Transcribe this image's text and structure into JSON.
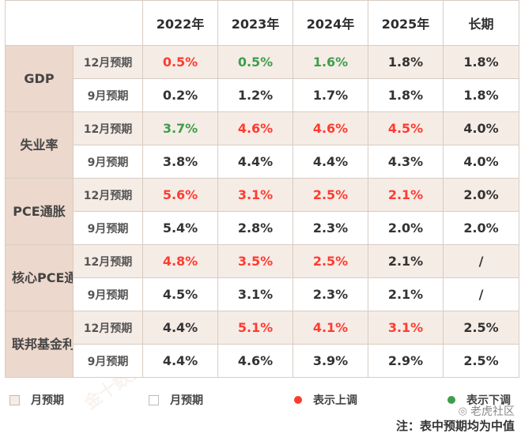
{
  "header": {
    "corner": "",
    "years": [
      "2022年",
      "2023年",
      "2024年",
      "2025年",
      "长期"
    ]
  },
  "rows": [
    {
      "metric": "GDP",
      "dec": {
        "label": "12月预期",
        "values": [
          "0.5%",
          "0.5%",
          "1.6%",
          "1.8%",
          "1.8%"
        ],
        "dirs": [
          "up",
          "down",
          "down",
          "",
          ""
        ]
      },
      "sep": {
        "label": "9月预期",
        "values": [
          "0.2%",
          "1.2%",
          "1.7%",
          "1.8%",
          "1.8%"
        ]
      }
    },
    {
      "metric": "失业率",
      "dec": {
        "label": "12月预期",
        "values": [
          "3.7%",
          "4.6%",
          "4.6%",
          "4.5%",
          "4.0%"
        ],
        "dirs": [
          "down",
          "up",
          "up",
          "up",
          ""
        ]
      },
      "sep": {
        "label": "9月预期",
        "values": [
          "3.8%",
          "4.4%",
          "4.4%",
          "4.3%",
          "4.0%"
        ]
      }
    },
    {
      "metric": "PCE通胀",
      "dec": {
        "label": "12月预期",
        "values": [
          "5.6%",
          "3.1%",
          "2.5%",
          "2.1%",
          "2.0%"
        ],
        "dirs": [
          "up",
          "up",
          "up",
          "up",
          ""
        ]
      },
      "sep": {
        "label": "9月预期",
        "values": [
          "5.4%",
          "2.8%",
          "2.3%",
          "2.0%",
          "2.0%"
        ]
      }
    },
    {
      "metric": "核心PCE通胀",
      "dec": {
        "label": "12月预期",
        "values": [
          "4.8%",
          "3.5%",
          "2.5%",
          "2.1%",
          "/"
        ],
        "dirs": [
          "up",
          "up",
          "up",
          "",
          ""
        ]
      },
      "sep": {
        "label": "9月预期",
        "values": [
          "4.5%",
          "3.1%",
          "2.3%",
          "2.1%",
          "/"
        ]
      }
    },
    {
      "metric": "联邦基金利率",
      "dec": {
        "label": "12月预期",
        "values": [
          "4.4%",
          "5.1%",
          "4.1%",
          "3.1%",
          "2.5%"
        ],
        "dirs": [
          "",
          "up",
          "up",
          "up",
          ""
        ]
      },
      "sep": {
        "label": "9月预期",
        "values": [
          "4.4%",
          "4.6%",
          "3.9%",
          "2.9%",
          "2.5%"
        ]
      }
    }
  ],
  "legend": {
    "dec_label": "月预期",
    "sep_label": "月预期",
    "up_label": "表示上调",
    "down_label": "表示下调"
  },
  "colors": {
    "up": "#ff3b30",
    "down": "#3e9e4a",
    "accent": "#ecd8cc"
  },
  "note": "注：表中预期均为中值",
  "social": "老虎社区",
  "watermark": "金十数据"
}
